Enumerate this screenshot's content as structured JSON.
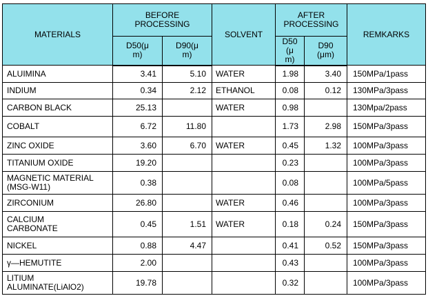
{
  "headers": {
    "materials": "MATERIALS",
    "before": "BEFORE\nPROCESSING",
    "solvent": "SOLVENT",
    "after": "AFTER\nPROCESSING",
    "remarks": "REMKARKS",
    "d50_before": "D50(μ\nm)",
    "d90_before": "D90(μ\nm)",
    "d50_after": "D50\n(μ\nm)",
    "d90_after": "D90\n(μm)"
  },
  "rows": [
    {
      "material": "ALUIMINA",
      "d50_before": "3.41",
      "d90_before": "5.10",
      "solvent": "WATER",
      "d50_after": "1.98",
      "d90_after": "3.40",
      "remarks": "150MPa/1pass"
    },
    {
      "material": "INDIUM",
      "d50_before": "0.34",
      "d90_before": "2.12",
      "solvent": "ETHANOL",
      "d50_after": "0.08",
      "d90_after": "0.12",
      "remarks": "130MPa/3pass"
    },
    {
      "material": "CARBON BLACK",
      "d50_before": "25.13",
      "d90_before": "",
      "solvent": "WATER",
      "d50_after": "0.98",
      "d90_after": "",
      "remarks": "130Mpa/2pass"
    },
    {
      "material": "COBALT",
      "d50_before": "6.72",
      "d90_before": "11.80",
      "solvent": "",
      "d50_after": "1.73",
      "d90_after": "2.98",
      "remarks": "150MPa/3pass"
    },
    {
      "material": "ZINC OXIDE",
      "d50_before": "3.60",
      "d90_before": "6.70",
      "solvent": "WATER",
      "d50_after": "0.45",
      "d90_after": "1.32",
      "remarks": "100MPa/3pass"
    },
    {
      "material": "TITANIUM OXIDE",
      "d50_before": "19.20",
      "d90_before": "",
      "solvent": "",
      "d50_after": "0.23",
      "d90_after": "",
      "remarks": "100MPa/3pass"
    },
    {
      "material": "MAGNETIC MATERIAL\n(MSG-W11)",
      "d50_before": "0.38",
      "d90_before": "",
      "solvent": "",
      "d50_after": "0.08",
      "d90_after": "",
      "remarks": "100MPa/5pass"
    },
    {
      "material": "ZIRCONIUM",
      "d50_before": "26.80",
      "d90_before": "",
      "solvent": "WATER",
      "d50_after": "0.46",
      "d90_after": "",
      "remarks": "100MPa/3pass"
    },
    {
      "material": "CALCIUM\nCARBONATE",
      "d50_before": "0.45",
      "d90_before": "1.51",
      "solvent": "WATER",
      "d50_after": "0.18",
      "d90_after": "0.24",
      "remarks": "150MPa/3pass"
    },
    {
      "material": "NICKEL",
      "d50_before": "0.88",
      "d90_before": "4.47",
      "solvent": "",
      "d50_after": "0.41",
      "d90_after": "0.52",
      "remarks": "150MPa/3pass"
    },
    {
      "material": "γ—HEMUTITE",
      "d50_before": "2.00",
      "d90_before": "",
      "solvent": "",
      "d50_after": "0.43",
      "d90_after": "",
      "remarks": "100MPa/3pass"
    },
    {
      "material": "LITIUM\nALUMINATE(LiAlO2)",
      "d50_before": "19.78",
      "d90_before": "",
      "solvent": "",
      "d50_after": "0.32",
      "d90_after": "",
      "remarks": "100MPa/3pass"
    }
  ]
}
